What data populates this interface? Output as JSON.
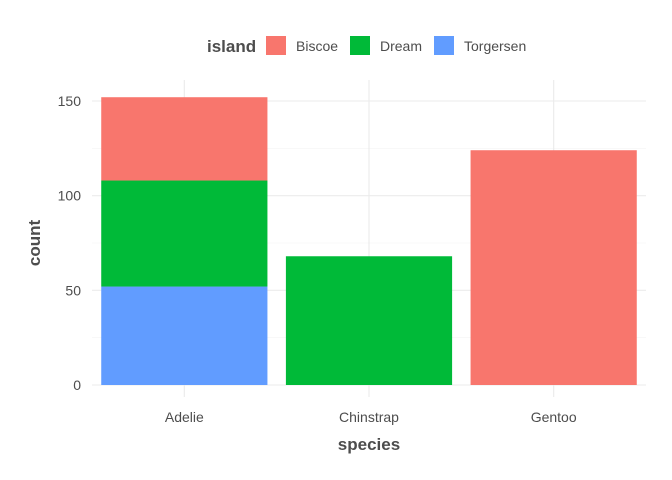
{
  "chart_data": {
    "type": "bar",
    "stacked": true,
    "categories": [
      "Adelie",
      "Chinstrap",
      "Gentoo"
    ],
    "series": [
      {
        "name": "Torgersen",
        "color": "#619CFF",
        "values": [
          52,
          0,
          0
        ]
      },
      {
        "name": "Dream",
        "color": "#00BA38",
        "values": [
          56,
          68,
          0
        ]
      },
      {
        "name": "Biscoe",
        "color": "#F8766D",
        "values": [
          44,
          0,
          124
        ]
      }
    ],
    "stack_order": [
      "Torgersen",
      "Dream",
      "Biscoe"
    ],
    "xlabel": "species",
    "ylabel": "count",
    "ylim": [
      0,
      160
    ],
    "yticks": [
      0,
      50,
      100,
      150
    ],
    "legend": {
      "title": "island",
      "position": "top",
      "order": [
        "Biscoe",
        "Dream",
        "Torgersen"
      ]
    },
    "grid": true
  }
}
